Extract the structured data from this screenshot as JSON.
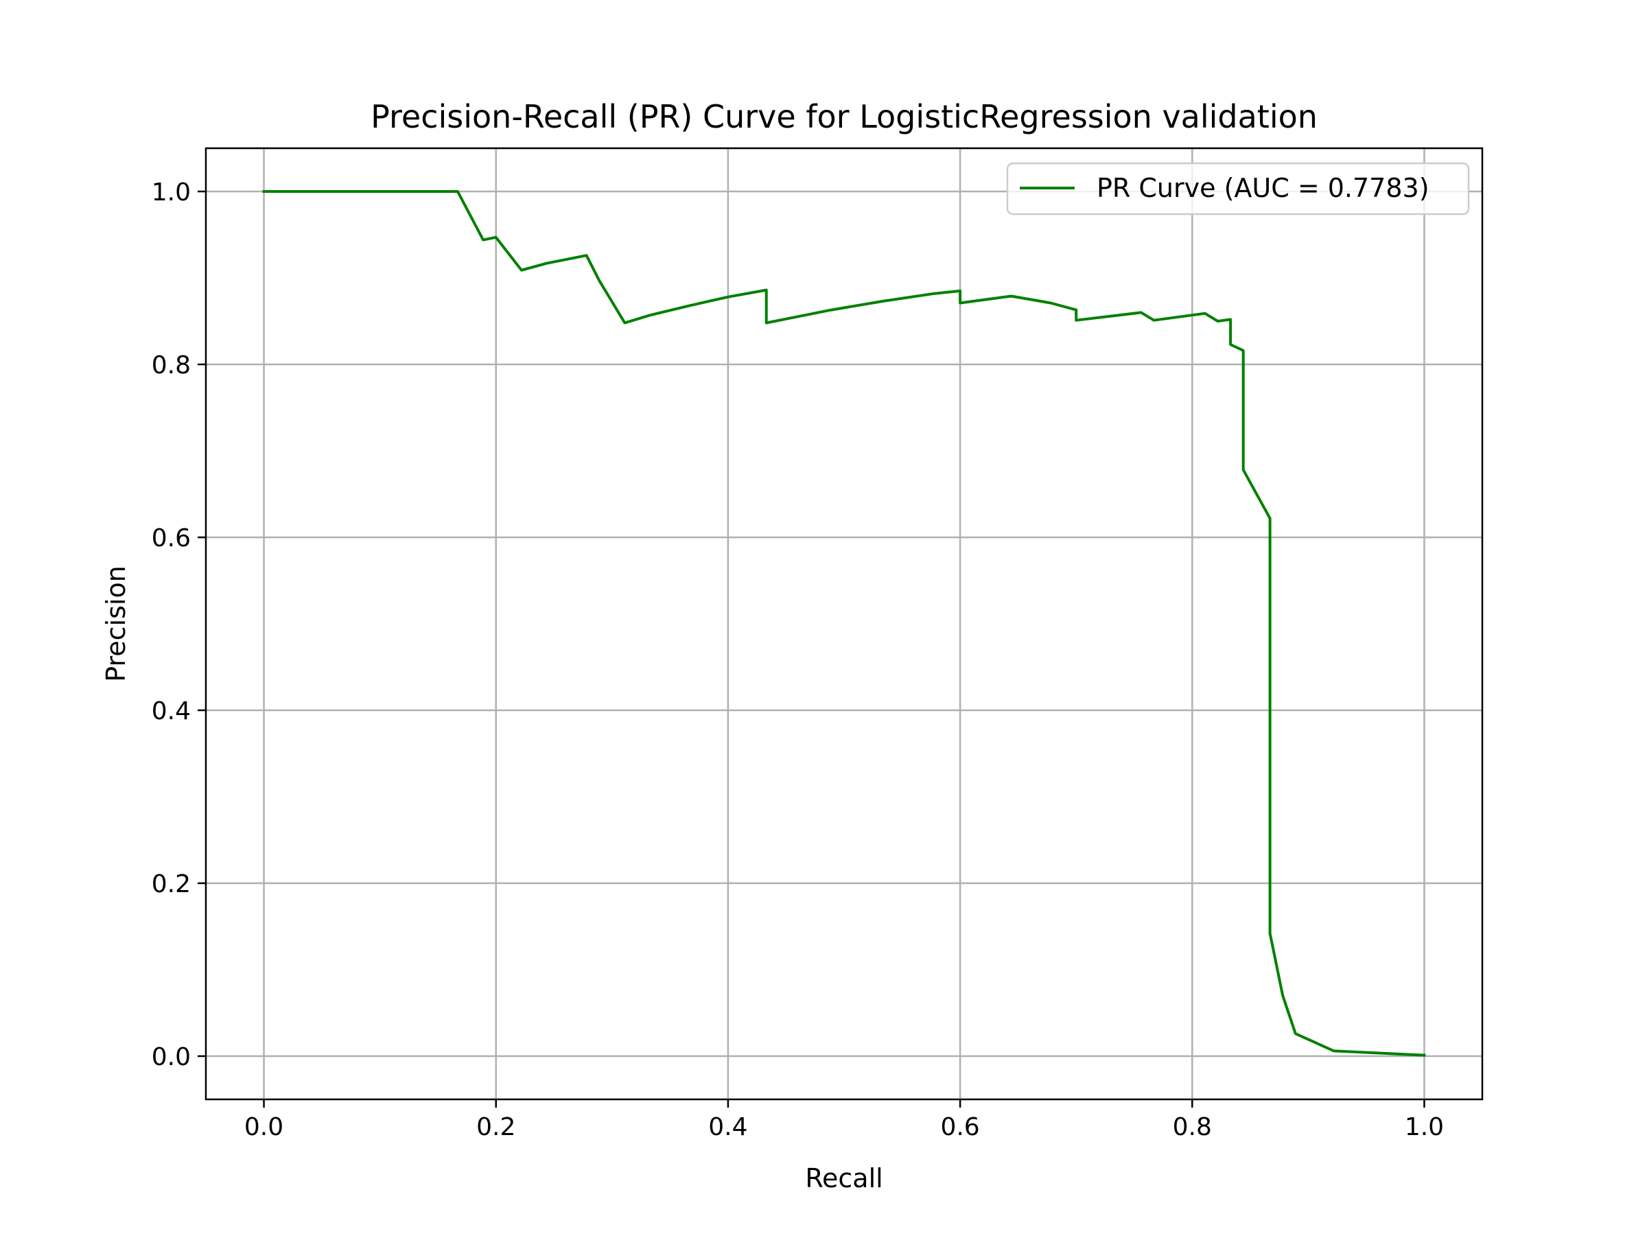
{
  "chart_data": {
    "type": "line",
    "title": "Precision-Recall (PR) Curve for LogisticRegression validation",
    "xlabel": "Recall",
    "ylabel": "Precision",
    "xlim": [
      -0.05,
      1.05
    ],
    "ylim": [
      -0.05,
      1.05
    ],
    "xticks": [
      "0.0",
      "0.2",
      "0.4",
      "0.6",
      "0.8",
      "1.0"
    ],
    "yticks": [
      "0.0",
      "0.2",
      "0.4",
      "0.6",
      "0.8",
      "1.0"
    ],
    "grid": true,
    "legend_position": "top-right",
    "series": [
      {
        "name": "PR Curve (AUC = 0.7783)",
        "color": "#008000",
        "x": [
          0.0,
          0.167,
          0.189,
          0.2,
          0.222,
          0.244,
          0.278,
          0.289,
          0.311,
          0.333,
          0.367,
          0.4,
          0.433,
          0.433,
          0.489,
          0.533,
          0.578,
          0.6,
          0.6,
          0.644,
          0.678,
          0.7,
          0.7,
          0.756,
          0.767,
          0.8,
          0.811,
          0.822,
          0.833,
          0.833,
          0.844,
          0.844,
          0.867,
          0.867,
          0.878,
          0.889,
          0.922,
          1.0
        ],
        "y": [
          1.0,
          1.0,
          0.944,
          0.947,
          0.909,
          0.917,
          0.926,
          0.897,
          0.848,
          0.857,
          0.868,
          0.878,
          0.886,
          0.848,
          0.863,
          0.873,
          0.882,
          0.885,
          0.871,
          0.879,
          0.871,
          0.863,
          0.851,
          0.86,
          0.851,
          0.857,
          0.859,
          0.85,
          0.852,
          0.823,
          0.816,
          0.678,
          0.622,
          0.142,
          0.07,
          0.026,
          0.006,
          0.001
        ]
      }
    ]
  }
}
